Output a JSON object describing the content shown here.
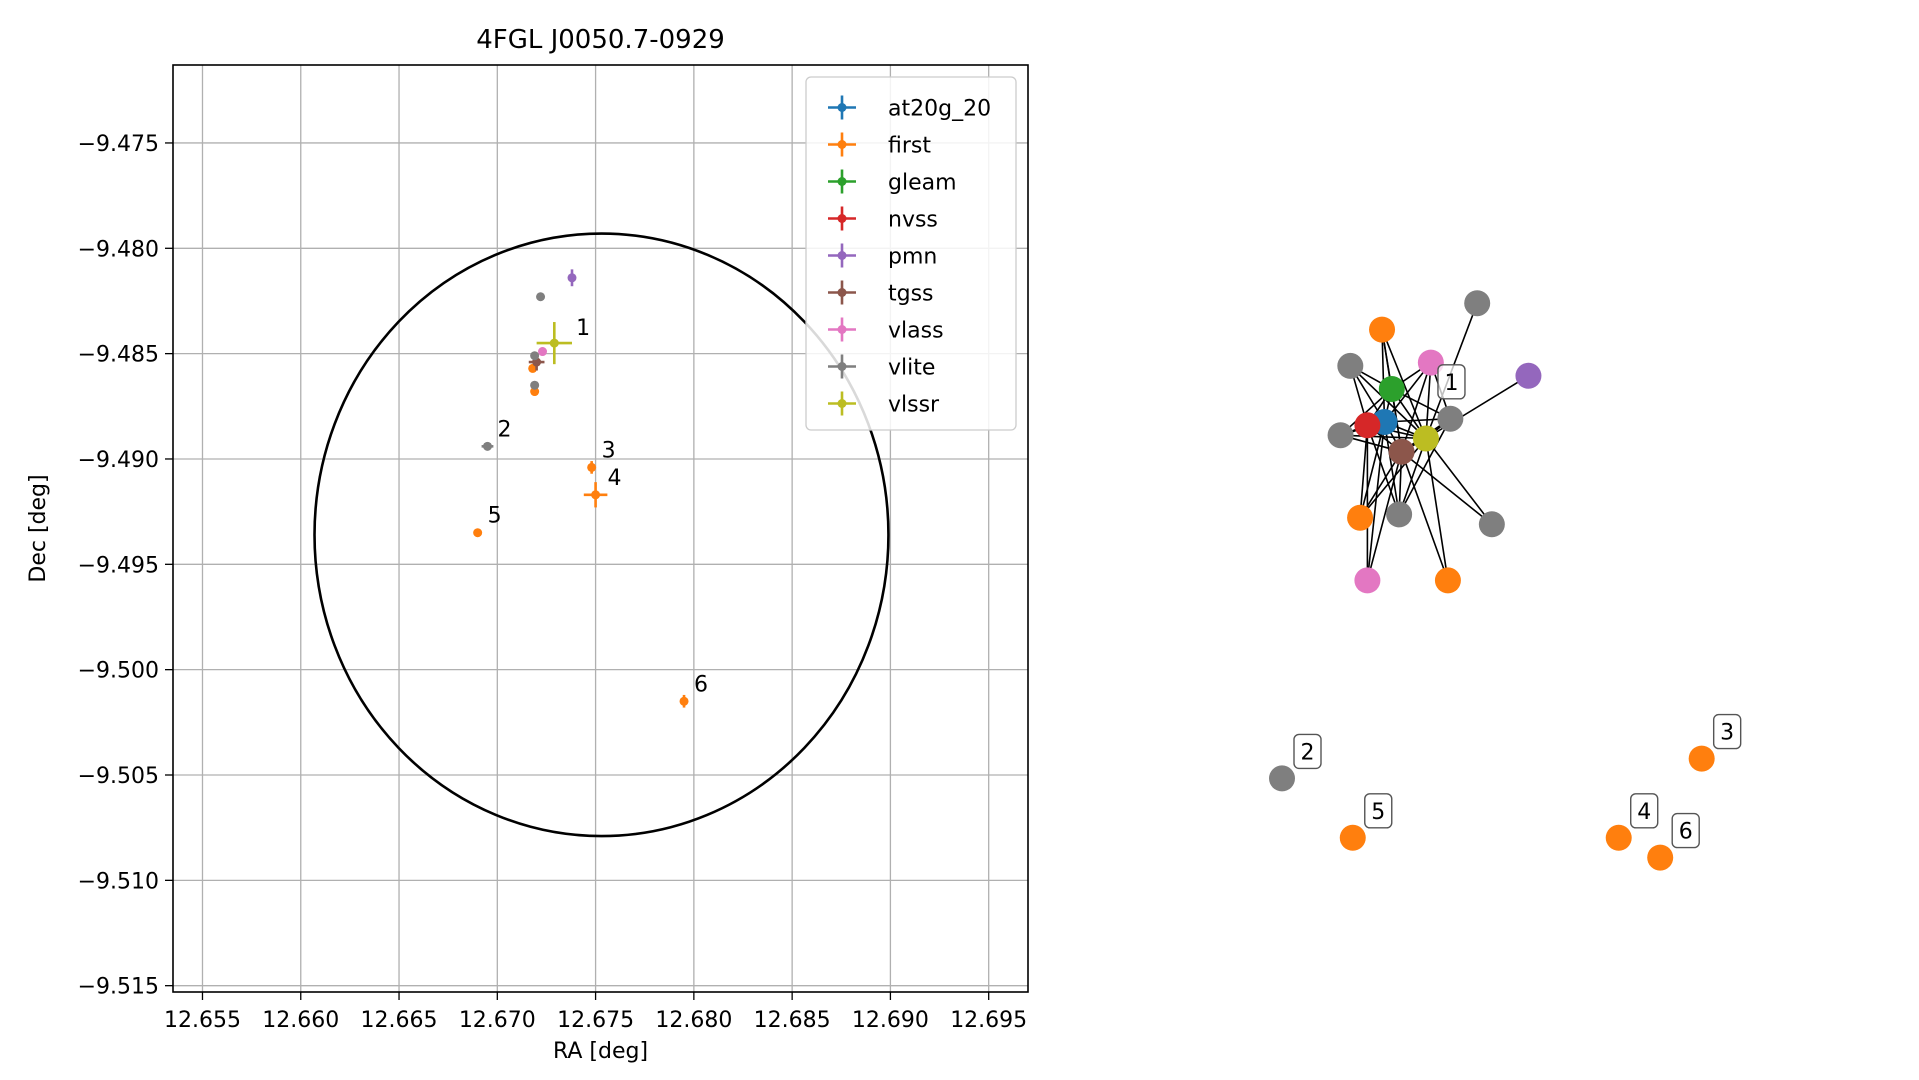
{
  "chart_data": [
    {
      "type": "scatter",
      "title": "4FGL J0050.7-0929",
      "xlabel": "RA [deg]",
      "ylabel": "Dec [deg]",
      "xlim": [
        12.6535,
        12.697
      ],
      "ylim": [
        -9.5153,
        -9.4713
      ],
      "xticks": [
        12.655,
        12.66,
        12.665,
        12.67,
        12.675,
        12.68,
        12.685,
        12.69,
        12.695
      ],
      "xtick_labels": [
        "12.655",
        "12.660",
        "12.665",
        "12.670",
        "12.675",
        "12.680",
        "12.685",
        "12.690",
        "12.695"
      ],
      "yticks": [
        -9.475,
        -9.48,
        -9.485,
        -9.49,
        -9.495,
        -9.5,
        -9.505,
        -9.51,
        -9.515
      ],
      "ytick_labels": [
        "−9.475",
        "−9.480",
        "−9.485",
        "−9.490",
        "−9.495",
        "−9.500",
        "−9.505",
        "−9.510",
        "−9.515"
      ],
      "grid": true,
      "legend_placement": "upper-right",
      "ellipse": {
        "center": [
          12.6753,
          -9.4936
        ],
        "semi_axis_ra": 0.0146,
        "semi_axis_dec": 0.0143,
        "color": "#000000"
      },
      "series": [
        {
          "name": "at20g_20",
          "color": "#1f77b4",
          "points": []
        },
        {
          "name": "first",
          "color": "#ff7f0e",
          "points": [
            {
              "x": 12.6718,
              "y": -9.4857,
              "xerr": 0.0001,
              "yerr": 0.0002
            },
            {
              "x": 12.6719,
              "y": -9.4868,
              "xerr": 0.0001,
              "yerr": 0.0002
            },
            {
              "x": 12.6748,
              "y": -9.4904,
              "xerr": 0.0002,
              "yerr": 0.0003
            },
            {
              "x": 12.675,
              "y": -9.4917,
              "xerr": 0.0006,
              "yerr": 0.0006
            },
            {
              "x": 12.669,
              "y": -9.4935,
              "xerr": 0.0001,
              "yerr": 0.0001
            },
            {
              "x": 12.6795,
              "y": -9.5015,
              "xerr": 0.0002,
              "yerr": 0.0003
            }
          ]
        },
        {
          "name": "gleam",
          "color": "#2ca02c",
          "points": []
        },
        {
          "name": "nvss",
          "color": "#d62728",
          "points": []
        },
        {
          "name": "pmn",
          "color": "#9467bd",
          "points": [
            {
              "x": 12.6738,
              "y": -9.4814,
              "xerr": 0.0002,
              "yerr": 0.0004
            }
          ]
        },
        {
          "name": "tgss",
          "color": "#8c564b",
          "points": [
            {
              "x": 12.672,
              "y": -9.4854,
              "xerr": 0.0004,
              "yerr": 0.0004
            }
          ]
        },
        {
          "name": "vlass",
          "color": "#e377c2",
          "points": [
            {
              "x": 12.6723,
              "y": -9.4849,
              "xerr": 0.0002,
              "yerr": 0.0002
            }
          ]
        },
        {
          "name": "vlite",
          "color": "#7f7f7f",
          "points": [
            {
              "x": 12.6722,
              "y": -9.4823,
              "xerr": 0.0001,
              "yerr": 0.0002
            },
            {
              "x": 12.6719,
              "y": -9.4851,
              "xerr": 0.0002,
              "yerr": 0.0002
            },
            {
              "x": 12.6719,
              "y": -9.4865,
              "xerr": 0.0001,
              "yerr": 0.0002
            },
            {
              "x": 12.6695,
              "y": -9.4894,
              "xerr": 0.0003,
              "yerr": 0.0002
            }
          ]
        },
        {
          "name": "vlssr",
          "color": "#bcbd22",
          "points": [
            {
              "x": 12.6729,
              "y": -9.4845,
              "xerr": 0.0009,
              "yerr": 0.001
            }
          ]
        }
      ],
      "annotations": [
        {
          "text": "1",
          "x": 12.6735,
          "y": -9.4846
        },
        {
          "text": "2",
          "x": 12.6695,
          "y": -9.4894
        },
        {
          "text": "3",
          "x": 12.6748,
          "y": -9.4904
        },
        {
          "text": "4",
          "x": 12.6751,
          "y": -9.4917
        },
        {
          "text": "5",
          "x": 12.669,
          "y": -9.4935
        },
        {
          "text": "6",
          "x": 12.6795,
          "y": -9.5015
        }
      ]
    },
    {
      "type": "network",
      "nodes": [
        {
          "id": "n0",
          "color": "#1f77b4",
          "x": 0.21,
          "y": 0.2
        },
        {
          "id": "n1",
          "color": "#2ca02c",
          "x": 0.225,
          "y": 0.15
        },
        {
          "id": "n2",
          "color": "#d62728",
          "x": 0.175,
          "y": 0.205
        },
        {
          "id": "n3",
          "color": "#8c564b",
          "x": 0.245,
          "y": 0.245
        },
        {
          "id": "n4",
          "color": "#bcbd22",
          "x": 0.295,
          "y": 0.225
        },
        {
          "id": "n5",
          "color": "#e377c2",
          "x": 0.305,
          "y": 0.11
        },
        {
          "id": "n6",
          "color": "#e377c2",
          "x": 0.175,
          "y": 0.44
        },
        {
          "id": "n7",
          "color": "#ff7f0e",
          "x": 0.205,
          "y": 0.06
        },
        {
          "id": "n8",
          "color": "#ff7f0e",
          "x": 0.16,
          "y": 0.345
        },
        {
          "id": "n9",
          "color": "#ff7f0e",
          "x": 0.34,
          "y": 0.44
        },
        {
          "id": "n10",
          "color": "#7f7f7f",
          "x": 0.14,
          "y": 0.115
        },
        {
          "id": "n11",
          "color": "#7f7f7f",
          "x": 0.12,
          "y": 0.22
        },
        {
          "id": "n12",
          "color": "#7f7f7f",
          "x": 0.24,
          "y": 0.34
        },
        {
          "id": "n13",
          "color": "#7f7f7f",
          "x": 0.345,
          "y": 0.195
        },
        {
          "id": "n14",
          "color": "#7f7f7f",
          "x": 0.4,
          "y": 0.02
        },
        {
          "id": "n15",
          "color": "#7f7f7f",
          "x": 0.43,
          "y": 0.355
        },
        {
          "id": "n16",
          "color": "#9467bd",
          "x": 0.505,
          "y": 0.13
        },
        {
          "id": "n17",
          "color": "#7f7f7f",
          "x": 0.0,
          "y": 0.74
        },
        {
          "id": "n18",
          "color": "#ff7f0e",
          "x": 0.86,
          "y": 0.71
        },
        {
          "id": "n19",
          "color": "#ff7f0e",
          "x": 0.145,
          "y": 0.83
        },
        {
          "id": "n20",
          "color": "#ff7f0e",
          "x": 0.69,
          "y": 0.83
        },
        {
          "id": "n21",
          "color": "#ff7f0e",
          "x": 0.775,
          "y": 0.86
        }
      ],
      "edges": [
        [
          "n0",
          "n1"
        ],
        [
          "n0",
          "n2"
        ],
        [
          "n0",
          "n3"
        ],
        [
          "n0",
          "n4"
        ],
        [
          "n0",
          "n5"
        ],
        [
          "n0",
          "n6"
        ],
        [
          "n0",
          "n7"
        ],
        [
          "n0",
          "n8"
        ],
        [
          "n0",
          "n10"
        ],
        [
          "n0",
          "n11"
        ],
        [
          "n0",
          "n12"
        ],
        [
          "n0",
          "n13"
        ],
        [
          "n1",
          "n2"
        ],
        [
          "n1",
          "n3"
        ],
        [
          "n1",
          "n4"
        ],
        [
          "n1",
          "n5"
        ],
        [
          "n1",
          "n7"
        ],
        [
          "n1",
          "n10"
        ],
        [
          "n1",
          "n11"
        ],
        [
          "n1",
          "n13"
        ],
        [
          "n2",
          "n3"
        ],
        [
          "n2",
          "n4"
        ],
        [
          "n2",
          "n6"
        ],
        [
          "n2",
          "n8"
        ],
        [
          "n2",
          "n10"
        ],
        [
          "n2",
          "n11"
        ],
        [
          "n2",
          "n12"
        ],
        [
          "n3",
          "n4"
        ],
        [
          "n3",
          "n5"
        ],
        [
          "n3",
          "n6"
        ],
        [
          "n3",
          "n8"
        ],
        [
          "n3",
          "n9"
        ],
        [
          "n3",
          "n11"
        ],
        [
          "n3",
          "n12"
        ],
        [
          "n3",
          "n13"
        ],
        [
          "n3",
          "n15"
        ],
        [
          "n4",
          "n5"
        ],
        [
          "n4",
          "n9"
        ],
        [
          "n4",
          "n12"
        ],
        [
          "n4",
          "n13"
        ],
        [
          "n4",
          "n14"
        ],
        [
          "n4",
          "n15"
        ],
        [
          "n4",
          "n16"
        ],
        [
          "n4",
          "n7"
        ],
        [
          "n5",
          "n13"
        ],
        [
          "n7",
          "n3"
        ],
        [
          "n10",
          "n4"
        ],
        [
          "n11",
          "n4"
        ],
        [
          "n8",
          "n4"
        ],
        [
          "n12",
          "n13"
        ]
      ],
      "labels": [
        {
          "text": "1",
          "node": "n4",
          "dx": 0.0,
          "dy": -0.045
        },
        {
          "text": "2",
          "node": "n17"
        },
        {
          "text": "3",
          "node": "n18"
        },
        {
          "text": "4",
          "node": "n20"
        },
        {
          "text": "5",
          "node": "n19"
        },
        {
          "text": "6",
          "node": "n21"
        }
      ]
    }
  ]
}
